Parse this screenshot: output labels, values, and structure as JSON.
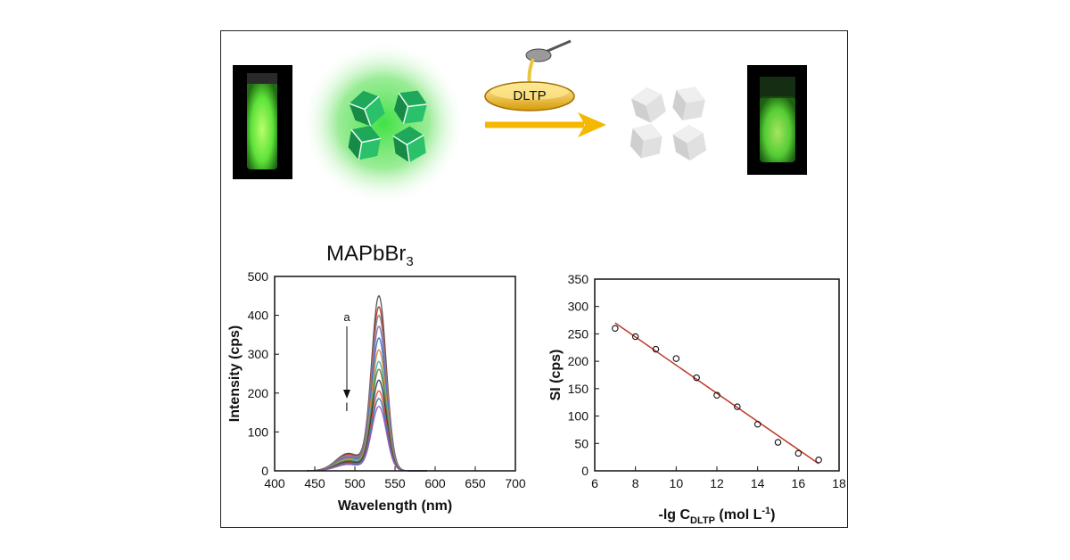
{
  "scheme": {
    "reagent_label": "DLTP",
    "compound_main": "MAPbBr",
    "compound_sub": "3",
    "colors": {
      "glow": "#37e03a",
      "cube": "#1fa85a",
      "arrow": "#f5b800",
      "cube_quenched": "#d8d8d8"
    }
  },
  "chart_data": [
    {
      "type": "line",
      "xlabel": "Wavelength (nm)",
      "ylabel": "Intensity (cps)",
      "xlim": [
        400,
        700
      ],
      "ylim": [
        0,
        500
      ],
      "xticks": [
        "400",
        "450",
        "500",
        "550",
        "600",
        "650",
        "700"
      ],
      "yticks": [
        "0",
        "100",
        "200",
        "300",
        "400",
        "500"
      ],
      "annotations": [
        "a",
        "l"
      ],
      "peak_wavelength": 530,
      "series": [
        {
          "peak": 448,
          "color": "#555555"
        },
        {
          "peak": 420,
          "color": "#c0392b"
        },
        {
          "peak": 398,
          "color": "#7f8c8d"
        },
        {
          "peak": 370,
          "color": "#8e6bb8"
        },
        {
          "peak": 340,
          "color": "#3a78c9"
        },
        {
          "peak": 310,
          "color": "#e08a2c"
        },
        {
          "peak": 280,
          "color": "#3fb5a8"
        },
        {
          "peak": 260,
          "color": "#6e7a2a"
        },
        {
          "peak": 232,
          "color": "#2c3e50"
        },
        {
          "peak": 205,
          "color": "#e74c3c"
        },
        {
          "peak": 185,
          "color": "#2980b9"
        },
        {
          "peak": 165,
          "color": "#9b59b6"
        }
      ]
    },
    {
      "type": "scatter",
      "xlabel_main": "-lg C",
      "xlabel_sub": "DLTP",
      "xlabel_end": " (mol L",
      "xlabel_sup": "-1",
      "xlabel_close": ")",
      "ylabel": "SI (cps)",
      "xlim": [
        6,
        18
      ],
      "ylim": [
        0,
        350
      ],
      "xticks": [
        "6",
        "8",
        "10",
        "12",
        "14",
        "16",
        "18"
      ],
      "yticks": [
        "0",
        "50",
        "100",
        "150",
        "200",
        "250",
        "300",
        "350"
      ],
      "x": [
        7,
        8,
        9,
        10,
        11,
        12,
        13,
        14,
        15,
        16,
        17
      ],
      "y": [
        260,
        245,
        222,
        205,
        170,
        138,
        117,
        85,
        52,
        32,
        20
      ],
      "fit": {
        "x": [
          7,
          17
        ],
        "y": [
          270,
          13
        ],
        "color": "#c0392b"
      }
    }
  ]
}
